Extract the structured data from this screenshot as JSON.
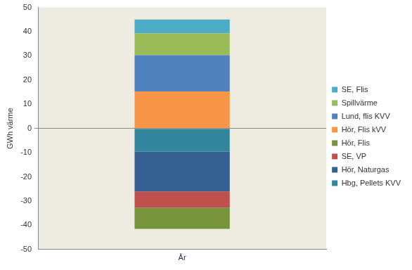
{
  "chart_data": {
    "type": "bar",
    "stacked": true,
    "y_label": "GWh värme",
    "categories": [
      "År"
    ],
    "series": [
      {
        "name": "Hbg, Pellets KVV",
        "color": "#31859c",
        "values": [
          -9.5
        ]
      },
      {
        "name": "Hör, Naturgas",
        "color": "#376092",
        "values": [
          -16.5
        ]
      },
      {
        "name": "SE, VP",
        "color": "#c0504d",
        "values": [
          -6.7
        ]
      },
      {
        "name": "Hör, Flis",
        "color": "#77933c",
        "values": [
          -8.8
        ]
      },
      {
        "name": "Hör, Flis kVV",
        "color": "#f79646",
        "values": [
          15.3
        ]
      },
      {
        "name": "Lund, flis KVV",
        "color": "#4f81bd",
        "values": [
          15
        ]
      },
      {
        "name": "Spillvärme",
        "color": "#9bbb59",
        "values": [
          9
        ]
      },
      {
        "name": "SE, Flis",
        "color": "#4bacc6",
        "values": [
          5.7
        ]
      }
    ],
    "ylim": [
      -50,
      50
    ],
    "yticks": [
      -50,
      -40,
      -30,
      -20,
      -10,
      0,
      10,
      20,
      30,
      40,
      50
    ],
    "grid": false,
    "legend": "right"
  }
}
